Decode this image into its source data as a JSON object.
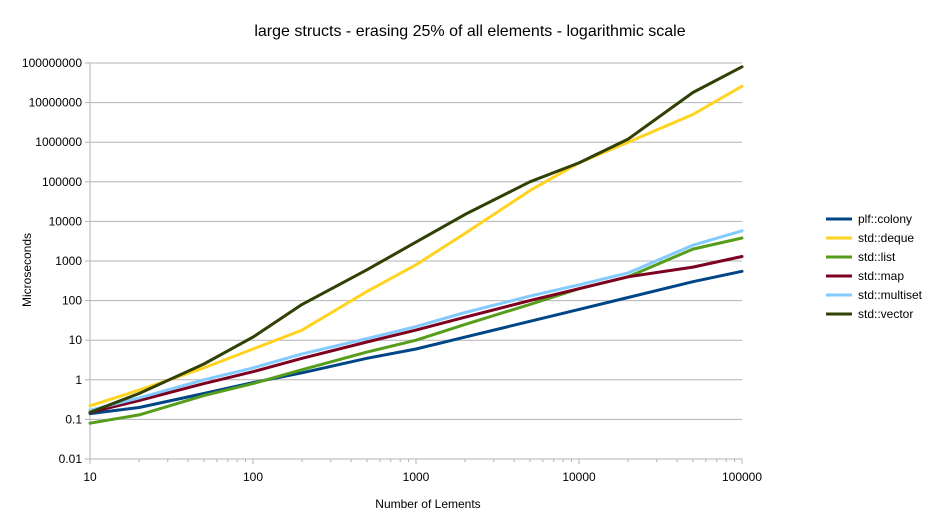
{
  "chart_data": {
    "type": "line",
    "title": "large structs - erasing 25% of all elements - logarithmic scale",
    "xlabel": "Number of Lements",
    "ylabel": "Microseconds",
    "x_scale": "log",
    "y_scale": "log",
    "xlim": [
      10,
      100000
    ],
    "ylim": [
      0.01,
      100000000
    ],
    "x_ticks": [
      "10",
      "100",
      "1000",
      "10000",
      "100000"
    ],
    "y_ticks": [
      "0.01",
      "0.1",
      "1",
      "10",
      "100",
      "1000",
      "10000",
      "100000",
      "1000000",
      "10000000",
      "100000000"
    ],
    "grid": "horizontal",
    "legend_position": "right",
    "x": [
      10,
      20,
      50,
      100,
      200,
      500,
      1000,
      2000,
      5000,
      10000,
      20000,
      50000,
      100000
    ],
    "series": [
      {
        "name": "plf::colony",
        "color": "#004586",
        "values": [
          0.14,
          0.2,
          0.45,
          0.85,
          1.5,
          3.5,
          6,
          12,
          30,
          60,
          120,
          300,
          550
        ]
      },
      {
        "name": "std::deque",
        "color": "#ffd320",
        "values": [
          0.22,
          0.55,
          2,
          6,
          18,
          170,
          800,
          5000,
          60000,
          300000,
          1000000,
          5000000,
          26000000
        ]
      },
      {
        "name": "std::list",
        "color": "#579d1c",
        "values": [
          0.08,
          0.13,
          0.4,
          0.8,
          1.8,
          5,
          10,
          25,
          80,
          200,
          400,
          2000,
          3800
        ]
      },
      {
        "name": "std::map",
        "color": "#7e0021",
        "values": [
          0.15,
          0.3,
          0.8,
          1.6,
          3.5,
          9,
          18,
          38,
          100,
          200,
          400,
          700,
          1300
        ]
      },
      {
        "name": "std::multiset",
        "color": "#83caff",
        "values": [
          0.17,
          0.35,
          1,
          2,
          4.5,
          11,
          22,
          50,
          130,
          250,
          500,
          2500,
          5800
        ]
      },
      {
        "name": "std::vector",
        "color": "#314004",
        "values": [
          0.15,
          0.45,
          2.5,
          12,
          80,
          600,
          3000,
          15000,
          100000,
          300000,
          1200000,
          18000000,
          80000000
        ]
      }
    ]
  }
}
